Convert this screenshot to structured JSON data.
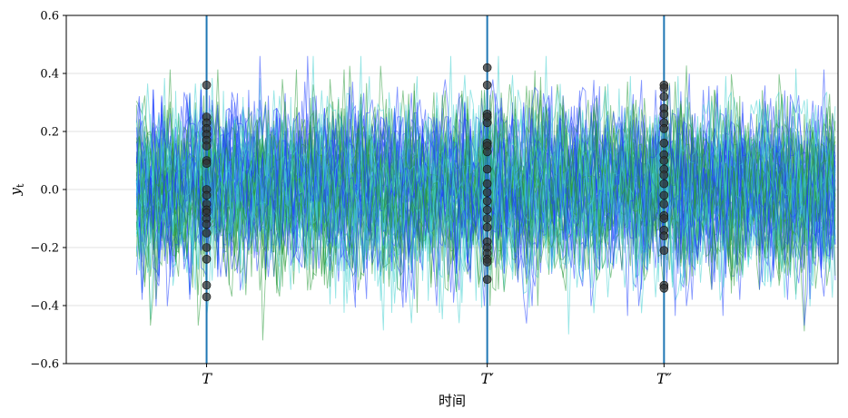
{
  "chart_data": {
    "type": "line",
    "title": "",
    "xlabel": "时间",
    "ylabel": "y",
    "ylabel_subscript": "t",
    "ylim": [
      -0.6,
      0.6
    ],
    "yticks": [
      {
        "value": 0.6,
        "label": "0.6"
      },
      {
        "value": 0.4,
        "label": "0.4"
      },
      {
        "value": 0.2,
        "label": "0.2"
      },
      {
        "value": 0.0,
        "label": "0.0"
      },
      {
        "value": -0.2,
        "label": "−0.2"
      },
      {
        "value": -0.4,
        "label": "−0.4"
      },
      {
        "value": -0.6,
        "label": "−0.6"
      }
    ],
    "xlim": [
      -25,
      250
    ],
    "n_time_steps": 250,
    "grid": "horizontal",
    "legend": "none",
    "colors": {
      "axis": "#000000",
      "grid": "#d9d9d9",
      "vline": "#1f77b4",
      "dot": "#333333"
    },
    "series_colors": [
      "#1f3fff",
      "#2a9a3a",
      "#3fd0d0"
    ],
    "n_paths": 60,
    "path_std": 0.13,
    "vlines": [
      {
        "x": 25,
        "label": "T"
      },
      {
        "x": 125,
        "label": "T′"
      },
      {
        "x": 188,
        "label": "T″"
      }
    ],
    "markers": [
      {
        "at": "T",
        "y": [
          0.36,
          0.25,
          0.23,
          0.21,
          0.19,
          0.17,
          0.15,
          0.1,
          0.09,
          0.0,
          -0.02,
          -0.05,
          -0.07,
          -0.08,
          -0.1,
          -0.12,
          -0.15,
          -0.2,
          -0.24,
          -0.33,
          -0.37
        ]
      },
      {
        "at": "T′",
        "y": [
          0.42,
          0.36,
          0.26,
          0.25,
          0.23,
          0.16,
          0.15,
          0.13,
          0.07,
          0.02,
          -0.01,
          -0.04,
          -0.07,
          -0.1,
          -0.13,
          -0.18,
          -0.2,
          -0.22,
          -0.24,
          -0.25,
          -0.31
        ]
      },
      {
        "at": "T″",
        "y": [
          0.36,
          0.35,
          0.32,
          0.28,
          0.26,
          0.23,
          0.21,
          0.16,
          0.12,
          0.1,
          0.07,
          0.05,
          0.02,
          -0.02,
          -0.05,
          -0.09,
          -0.1,
          -0.14,
          -0.16,
          -0.21,
          -0.33,
          -0.34
        ]
      }
    ]
  }
}
